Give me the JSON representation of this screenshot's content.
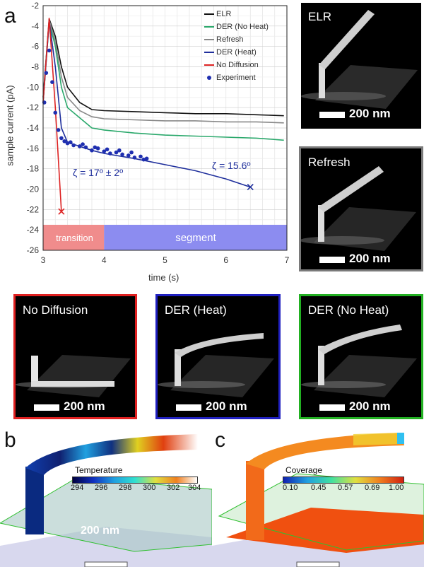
{
  "panel_labels": {
    "a": "a",
    "b": "b",
    "c": "c"
  },
  "chart_data": {
    "type": "line",
    "xlabel": "time (s)",
    "ylabel": "sample current (pA)",
    "xlim": [
      3,
      7
    ],
    "ylim": [
      -26,
      -2
    ],
    "xticks": [
      "3",
      "4",
      "5",
      "6",
      "7"
    ],
    "yticks": [
      "-2",
      "-4",
      "-6",
      "-8",
      "-10",
      "-12",
      "-14",
      "-16",
      "-18",
      "-20",
      "-22",
      "-24",
      "-26"
    ],
    "series": [
      {
        "name": "ELR",
        "color": "#111111",
        "x": [
          3.0,
          3.1,
          3.2,
          3.3,
          3.4,
          3.6,
          3.8,
          4.0,
          4.5,
          5.0,
          5.5,
          6.0,
          6.5,
          6.95
        ],
        "y": [
          -11,
          -3.3,
          -5,
          -8,
          -10,
          -11.5,
          -12.2,
          -12.3,
          -12.4,
          -12.5,
          -12.6,
          -12.6,
          -12.7,
          -12.8
        ]
      },
      {
        "name": "DER (No Heat)",
        "color": "#2aa86b",
        "x": [
          3.0,
          3.1,
          3.2,
          3.3,
          3.4,
          3.6,
          3.8,
          4.0,
          4.5,
          5.0,
          5.5,
          6.0,
          6.5,
          6.95
        ],
        "y": [
          -11.5,
          -3.6,
          -6,
          -10,
          -12,
          -13,
          -14,
          -14.2,
          -14.5,
          -14.7,
          -14.8,
          -14.9,
          -15.0,
          -15.2
        ]
      },
      {
        "name": "Refresh",
        "color": "#888888",
        "x": [
          3.0,
          3.1,
          3.2,
          3.3,
          3.4,
          3.6,
          3.8,
          4.0,
          4.5,
          5.0,
          5.5,
          6.0,
          6.5,
          6.95
        ],
        "y": [
          -11.2,
          -3.4,
          -5.5,
          -9,
          -11,
          -12.3,
          -12.9,
          -13.1,
          -13.2,
          -13.3,
          -13.3,
          -13.4,
          -13.4,
          -13.5
        ]
      },
      {
        "name": "DER (Heat)",
        "color": "#1f2f9c",
        "x": [
          3.0,
          3.1,
          3.2,
          3.3,
          3.4,
          3.6,
          3.8,
          4.0,
          4.5,
          5.0,
          5.5,
          6.0,
          6.4
        ],
        "y": [
          -11.5,
          -3.5,
          -8,
          -14,
          -15.4,
          -15.8,
          -16.2,
          -16.5,
          -17.0,
          -17.6,
          -18.2,
          -19.0,
          -19.8
        ]
      },
      {
        "name": "No Diffusion",
        "color": "#dd2222",
        "x": [
          3.0,
          3.1,
          3.2,
          3.3
        ],
        "y": [
          -11.5,
          -3.2,
          -12,
          -22.2
        ]
      },
      {
        "name": "Experiment",
        "color": "#1f2fb0",
        "marker": "dot",
        "x": [
          3.02,
          3.05,
          3.1,
          3.15,
          3.2,
          3.25,
          3.3,
          3.35,
          3.4,
          3.5,
          3.6,
          3.7,
          3.8,
          3.9,
          4.0,
          4.1,
          4.2,
          4.3,
          4.4,
          4.5,
          4.6,
          4.7,
          3.45,
          3.65,
          3.85,
          4.05,
          4.25,
          4.45,
          4.65
        ],
        "y": [
          -11.5,
          -8.6,
          -6.4,
          -9.5,
          -12.5,
          -14.2,
          -15.0,
          -15.3,
          -15.5,
          -15.7,
          -15.8,
          -15.9,
          -16.2,
          -16.0,
          -16.3,
          -16.5,
          -16.4,
          -16.6,
          -16.7,
          -16.9,
          -16.8,
          -17.0,
          -15.4,
          -15.6,
          -15.9,
          -16.1,
          -16.2,
          -16.4,
          -17.1
        ]
      }
    ],
    "bands": [
      {
        "label": "transition",
        "from": 3,
        "to": 4,
        "color": "#f08c8c"
      },
      {
        "label": "segment",
        "from": 4,
        "to": 7,
        "color": "#8c8cf0"
      }
    ],
    "annotations": {
      "zeta_exp": "ζ = 17º ± 2º",
      "zeta_sim": "ζ = 15.6º"
    },
    "end_markers": [
      {
        "series": "No Diffusion",
        "x": 3.3,
        "y": -22.2
      },
      {
        "series": "DER (Heat)",
        "x": 6.4,
        "y": -19.8
      }
    ]
  },
  "sem_images": {
    "elr": {
      "label": "ELR",
      "scale": "200 nm"
    },
    "refresh": {
      "label": "Refresh",
      "scale": "200 nm"
    },
    "no_diffusion": {
      "label": "No Diffusion",
      "scale": "200 nm"
    },
    "der_heat": {
      "label": "DER (Heat)",
      "scale": "200 nm"
    },
    "der_no_heat": {
      "label": "DER (No Heat)",
      "scale": "200 nm"
    }
  },
  "colors": {
    "frame_gray": "#7a7a7a",
    "frame_red": "#e02020",
    "frame_blue": "#2020c0",
    "frame_green": "#22b022"
  },
  "panel_b": {
    "colorbar_title": "Temperature",
    "ticks": [
      "294",
      "296",
      "298",
      "300",
      "302",
      "304"
    ],
    "scale": "200 nm"
  },
  "panel_c": {
    "colorbar_title": "Coverage",
    "ticks": [
      "0.10",
      "0.45",
      "0.57",
      "0.69",
      "1.00"
    ]
  }
}
